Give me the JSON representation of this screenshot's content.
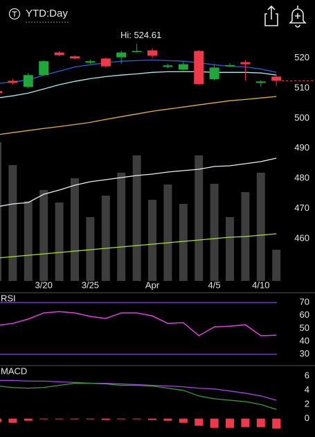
{
  "header": {
    "title": "YTD:Day"
  },
  "chart_data": [
    {
      "type": "candlestick",
      "annotation": "Hi: 524.61",
      "categories": [
        null,
        null,
        null,
        "3/20",
        null,
        null,
        "3/25",
        null,
        null,
        null,
        "Apr",
        null,
        null,
        null,
        "4/5",
        null,
        null,
        "4/10",
        null
      ],
      "open": [
        509.0,
        512.4,
        510.4,
        514.3,
        521.8,
        520.5,
        518.4,
        519.8,
        520.2,
        522.1,
        522.5,
        517.0,
        516.1,
        522.3,
        512.9,
        517.3,
        518.6,
        511.7,
        513.8
      ],
      "high": [
        509.4,
        513.0,
        515.0,
        519.2,
        522.2,
        520.9,
        519.4,
        520.2,
        522.4,
        524.61,
        523.2,
        518.0,
        518.8,
        522.6,
        518.0,
        518.2,
        519.3,
        512.6,
        514.3
      ],
      "low": [
        508.0,
        511.2,
        509.9,
        514.0,
        520.5,
        519.5,
        518.0,
        516.8,
        518.0,
        521.8,
        519.8,
        516.6,
        515.7,
        511.0,
        512.6,
        517.0,
        512.4,
        510.4,
        510.6
      ],
      "close": [
        508.3,
        511.7,
        514.3,
        518.9,
        520.9,
        519.8,
        518.9,
        517.2,
        521.8,
        522.3,
        520.7,
        517.5,
        517.9,
        511.3,
        516.8,
        517.6,
        517.9,
        512.2,
        512.4
      ],
      "up_color": "#1fa83a",
      "down_color": "#f0384a",
      "lines": [
        {
          "color": "#2f5fe0",
          "values": [
            511.5,
            512.0,
            512.7,
            514.3,
            515.6,
            517.0,
            517.7,
            518.4,
            518.9,
            519.1,
            519.3,
            519.1,
            518.9,
            518.4,
            517.7,
            517.2,
            517.0,
            516.3,
            515.2
          ]
        },
        {
          "color": "#a8eef2",
          "values": [
            506.7,
            507.4,
            508.3,
            509.7,
            511.1,
            512.2,
            513.1,
            513.8,
            514.3,
            514.7,
            515.2,
            515.4,
            515.4,
            515.4,
            515.2,
            515.2,
            515.2,
            515.0,
            514.3
          ]
        },
        {
          "color": "#e3b23c",
          "values": [
            494.5,
            495.2,
            495.9,
            496.6,
            497.2,
            497.9,
            498.6,
            499.6,
            500.5,
            501.4,
            502.3,
            503.0,
            503.7,
            504.4,
            505.1,
            505.8,
            506.2,
            506.7,
            507.2
          ]
        }
      ],
      "ylim": [
        446,
        530
      ],
      "yticks": [
        520,
        510,
        500,
        490,
        480,
        470,
        460
      ]
    },
    {
      "type": "bar",
      "values": [
        200,
        167,
        115,
        131,
        113,
        148,
        92,
        123,
        156,
        181,
        117,
        139,
        111,
        181,
        140,
        92,
        128,
        156,
        45
      ],
      "color": "#3d3d3d",
      "lines": [
        {
          "color": "#e8f0f6",
          "values": [
            107,
            111,
            113,
            125,
            131,
            138,
            143,
            146,
            149,
            152,
            154,
            157,
            159,
            161,
            165,
            166,
            169,
            172,
            177
          ]
        },
        {
          "color": "#a8e03c",
          "values": [
            33,
            35,
            37,
            39,
            41,
            43,
            45,
            47,
            49,
            51,
            53,
            55,
            57,
            59,
            61,
            63,
            64,
            66,
            68
          ]
        }
      ],
      "ylim": [
        0,
        220
      ]
    },
    {
      "type": "line",
      "title": "RSI",
      "series": [
        {
          "color": "#e040e0",
          "values": [
            52.3,
            53.9,
            57.2,
            62,
            63,
            62,
            59.3,
            57.7,
            62,
            62,
            59.7,
            53.9,
            54.4,
            44.3,
            51.2,
            51.7,
            52.8,
            44.3,
            44.8
          ]
        }
      ],
      "levels": [
        70,
        30
      ],
      "level_color": "#7a3bd0",
      "ylim": [
        25,
        76
      ],
      "yticks": [
        70,
        60,
        50,
        40,
        30
      ]
    },
    {
      "type": "macd",
      "title": "MACD",
      "series": [
        {
          "color": "#a744e6",
          "values": [
            5.4,
            5.4,
            5.3,
            5.3,
            5.2,
            5.1,
            5.0,
            5.0,
            4.9,
            4.8,
            4.7,
            4.6,
            4.5,
            4.3,
            4.2,
            3.9,
            3.6,
            3.2,
            2.6
          ]
        },
        {
          "color": "#3aa13a",
          "values": [
            4.6,
            4.4,
            4.3,
            4.4,
            4.7,
            5.0,
            5.0,
            4.9,
            4.7,
            4.7,
            4.6,
            4.3,
            4.0,
            3.2,
            2.8,
            2.6,
            2.4,
            2.0,
            1.3
          ]
        }
      ],
      "histogram": {
        "color": "#f0384a",
        "values": [
          -0.5,
          -0.6,
          -0.3,
          -0.1,
          0.0,
          -0.1,
          -0.1,
          -0.2,
          -0.1,
          -0.1,
          -0.2,
          -0.3,
          -0.6,
          -1.0,
          -1.3,
          -1.3,
          -1.2,
          -1.2,
          -1.4
        ]
      },
      "ylim": [
        -2.4,
        7.2
      ],
      "yticks": [
        6,
        4,
        2,
        0
      ]
    }
  ]
}
